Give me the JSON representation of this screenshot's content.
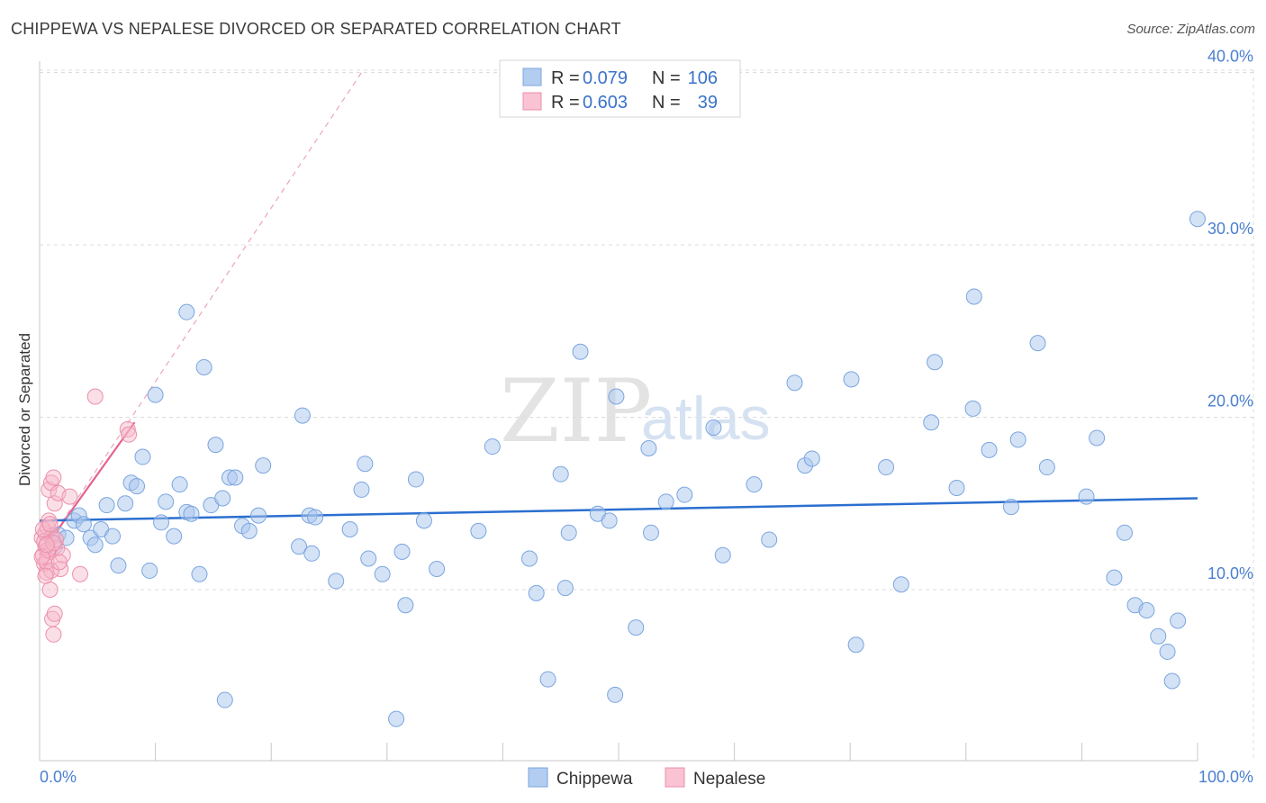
{
  "header": {
    "title": "CHIPPEWA VS NEPALESE DIVORCED OR SEPARATED CORRELATION CHART",
    "source": "Source: ZipAtlas.com"
  },
  "watermark": {
    "zip": "ZIP",
    "atlas": "atlas"
  },
  "colors": {
    "blue_fill": "#a9c6ee",
    "blue_stroke": "#7aa6df",
    "blue_line": "#2b6fd0",
    "pink_fill": "#f6b7c9",
    "pink_stroke": "#ec8fab",
    "pink_line": "#e4638f",
    "grid": "#dcdcdc",
    "axis_label": "#4a7fd0"
  },
  "legend": {
    "rows": [
      {
        "series": "Chippewa",
        "r_label": "R =",
        "r_value": "0.079",
        "n_label": "N =",
        "n_value": "106"
      },
      {
        "series": "Nepalese",
        "r_label": "R =",
        "r_value": "0.603",
        "n_label": "N =",
        "n_value": "39"
      }
    ]
  },
  "bottom_legend": [
    "Chippewa",
    "Nepalese"
  ],
  "chart_data": {
    "type": "scatter",
    "title": "CHIPPEWA VS NEPALESE DIVORCED OR SEPARATED CORRELATION CHART",
    "xlabel": "",
    "ylabel": "Divorced or Separated",
    "xlim": [
      0,
      100
    ],
    "ylim": [
      0,
      42
    ],
    "x_tick_labels": [
      "0.0%",
      "100.0%"
    ],
    "y_ticks": [
      10,
      20,
      30,
      40
    ],
    "y_tick_labels": [
      "10.0%",
      "20.0%",
      "30.0%",
      "40.0%"
    ],
    "grid": true,
    "series": [
      {
        "name": "Chippewa",
        "R": 0.079,
        "N": 106,
        "trend": {
          "x": [
            0,
            100
          ],
          "y": [
            14.0,
            15.3
          ]
        },
        "points": [
          [
            1.0,
            13.0
          ],
          [
            1.3,
            12.5
          ],
          [
            1.6,
            13.2
          ],
          [
            2.3,
            13.0
          ],
          [
            3.0,
            14.0
          ],
          [
            3.4,
            14.3
          ],
          [
            3.8,
            13.8
          ],
          [
            4.4,
            13.0
          ],
          [
            4.8,
            12.6
          ],
          [
            5.3,
            13.5
          ],
          [
            5.8,
            14.9
          ],
          [
            6.3,
            13.1
          ],
          [
            6.8,
            11.4
          ],
          [
            7.4,
            15.0
          ],
          [
            7.9,
            16.2
          ],
          [
            8.4,
            16.0
          ],
          [
            8.9,
            17.7
          ],
          [
            9.5,
            11.1
          ],
          [
            10.0,
            21.3
          ],
          [
            10.5,
            13.9
          ],
          [
            10.9,
            15.1
          ],
          [
            11.6,
            13.1
          ],
          [
            12.1,
            16.1
          ],
          [
            12.7,
            14.5
          ],
          [
            13.1,
            14.4
          ],
          [
            13.8,
            10.9
          ],
          [
            14.2,
            22.9
          ],
          [
            14.8,
            14.9
          ],
          [
            15.2,
            18.4
          ],
          [
            15.8,
            15.3
          ],
          [
            16.4,
            16.5
          ],
          [
            16.9,
            16.5
          ],
          [
            17.5,
            13.7
          ],
          [
            18.1,
            13.4
          ],
          [
            18.9,
            14.3
          ],
          [
            19.3,
            17.2
          ],
          [
            12.7,
            26.1
          ],
          [
            16.0,
            3.6
          ],
          [
            22.7,
            20.1
          ],
          [
            23.3,
            14.3
          ],
          [
            22.4,
            12.5
          ],
          [
            23.8,
            14.2
          ],
          [
            23.5,
            12.1
          ],
          [
            25.6,
            10.5
          ],
          [
            26.8,
            13.5
          ],
          [
            27.8,
            15.8
          ],
          [
            28.1,
            17.3
          ],
          [
            28.4,
            11.8
          ],
          [
            29.6,
            10.9
          ],
          [
            30.8,
            2.5
          ],
          [
            31.3,
            12.2
          ],
          [
            31.6,
            9.1
          ],
          [
            32.5,
            16.4
          ],
          [
            33.2,
            14.0
          ],
          [
            34.3,
            11.2
          ],
          [
            37.9,
            13.4
          ],
          [
            39.1,
            18.3
          ],
          [
            42.3,
            11.8
          ],
          [
            42.9,
            9.8
          ],
          [
            43.9,
            4.8
          ],
          [
            45.0,
            16.7
          ],
          [
            45.4,
            10.1
          ],
          [
            45.7,
            13.3
          ],
          [
            46.7,
            23.8
          ],
          [
            48.2,
            14.4
          ],
          [
            49.2,
            14.0
          ],
          [
            49.7,
            3.9
          ],
          [
            49.8,
            21.2
          ],
          [
            51.5,
            7.8
          ],
          [
            52.6,
            18.2
          ],
          [
            52.8,
            13.3
          ],
          [
            54.1,
            15.1
          ],
          [
            55.7,
            15.5
          ],
          [
            58.2,
            19.4
          ],
          [
            59.0,
            12.0
          ],
          [
            61.7,
            16.1
          ],
          [
            63.0,
            12.9
          ],
          [
            65.2,
            22.0
          ],
          [
            66.1,
            17.2
          ],
          [
            66.7,
            17.6
          ],
          [
            70.1,
            22.2
          ],
          [
            70.5,
            6.8
          ],
          [
            73.1,
            17.1
          ],
          [
            74.4,
            10.3
          ],
          [
            77.0,
            19.7
          ],
          [
            77.3,
            23.2
          ],
          [
            79.2,
            15.9
          ],
          [
            80.6,
            20.5
          ],
          [
            80.7,
            27.0
          ],
          [
            82.0,
            18.1
          ],
          [
            83.9,
            14.8
          ],
          [
            84.5,
            18.7
          ],
          [
            86.2,
            24.3
          ],
          [
            87.0,
            17.1
          ],
          [
            90.4,
            15.4
          ],
          [
            91.3,
            18.8
          ],
          [
            92.8,
            10.7
          ],
          [
            93.7,
            13.3
          ],
          [
            94.6,
            9.1
          ],
          [
            95.6,
            8.8
          ],
          [
            96.6,
            7.3
          ],
          [
            97.4,
            6.4
          ],
          [
            97.8,
            4.7
          ],
          [
            98.3,
            8.2
          ],
          [
            100.0,
            31.5
          ]
        ]
      },
      {
        "name": "Nepalese",
        "R": 0.603,
        "N": 39,
        "trend": {
          "x": [
            0,
            8.2
          ],
          "y": [
            12.0,
            19.7
          ]
        },
        "trend_extended": {
          "x": [
            0,
            28.0
          ],
          "y": [
            12.0,
            40.2
          ]
        },
        "points": [
          [
            0.2,
            13.0
          ],
          [
            0.3,
            12.0
          ],
          [
            0.4,
            11.5
          ],
          [
            0.5,
            13.3
          ],
          [
            0.5,
            12.5
          ],
          [
            0.6,
            11.0
          ],
          [
            0.7,
            13.6
          ],
          [
            0.8,
            15.8
          ],
          [
            0.9,
            12.2
          ],
          [
            1.0,
            16.2
          ],
          [
            1.1,
            13.1
          ],
          [
            1.2,
            16.5
          ],
          [
            1.3,
            15.0
          ],
          [
            0.8,
            14.0
          ],
          [
            0.4,
            12.8
          ],
          [
            0.9,
            10.0
          ],
          [
            1.1,
            8.3
          ],
          [
            1.2,
            7.4
          ],
          [
            1.3,
            8.6
          ],
          [
            1.5,
            12.4
          ],
          [
            1.6,
            15.6
          ],
          [
            1.8,
            11.2
          ],
          [
            2.0,
            12.0
          ],
          [
            2.6,
            15.4
          ],
          [
            3.5,
            10.9
          ],
          [
            4.8,
            21.2
          ],
          [
            7.6,
            19.3
          ],
          [
            7.7,
            19.0
          ],
          [
            0.6,
            11.6
          ],
          [
            0.7,
            12.3
          ],
          [
            1.0,
            11.1
          ],
          [
            1.4,
            12.9
          ],
          [
            0.3,
            13.5
          ],
          [
            0.5,
            10.8
          ],
          [
            1.7,
            11.6
          ],
          [
            0.9,
            13.8
          ],
          [
            0.2,
            11.9
          ],
          [
            1.2,
            12.7
          ],
          [
            0.6,
            12.6
          ]
        ]
      }
    ]
  }
}
